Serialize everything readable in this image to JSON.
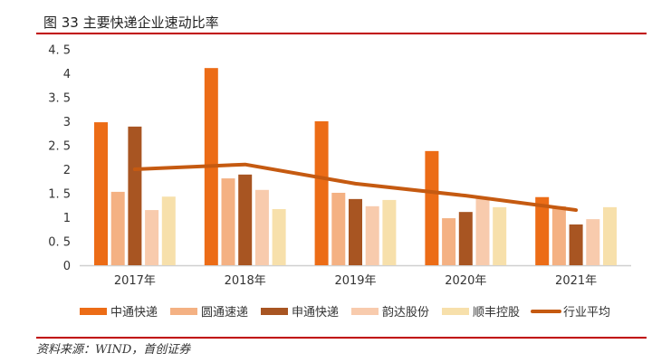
{
  "title": "图 33 主要快递企业速动比率",
  "source": "资料来源：WIND，首创证券",
  "chart_data": {
    "type": "bar",
    "title": "图 33 主要快递企业速动比率",
    "categories": [
      "2017年",
      "2018年",
      "2019年",
      "2020年",
      "2021年"
    ],
    "ylim": [
      0,
      4.5
    ],
    "yticks": [
      "0",
      "0.5",
      "1",
      "1.5",
      "2",
      "2.5",
      "3",
      "3.5",
      "4",
      "4.5"
    ],
    "grid": false,
    "legend": "bottom",
    "series": [
      {
        "name": "中通快递",
        "type": "bar",
        "color": "#ec6c16",
        "values": [
          2.98,
          4.11,
          3.0,
          2.38,
          1.42
        ]
      },
      {
        "name": "圆通速递",
        "type": "bar",
        "color": "#f4b183",
        "values": [
          1.53,
          1.81,
          1.51,
          0.98,
          1.23
        ]
      },
      {
        "name": "申通快递",
        "type": "bar",
        "color": "#a85522",
        "values": [
          2.89,
          1.89,
          1.38,
          1.11,
          0.85
        ]
      },
      {
        "name": "韵达股份",
        "type": "bar",
        "color": "#f8cbad",
        "values": [
          1.15,
          1.57,
          1.23,
          1.42,
          0.96
        ]
      },
      {
        "name": "顺丰控股",
        "type": "bar",
        "color": "#f7e0ab",
        "values": [
          1.43,
          1.17,
          1.36,
          1.21,
          1.21
        ]
      },
      {
        "name": "行业平均",
        "type": "line",
        "color": "#c55a11",
        "values": [
          2.0,
          2.1,
          1.7,
          1.45,
          1.15
        ]
      }
    ]
  }
}
